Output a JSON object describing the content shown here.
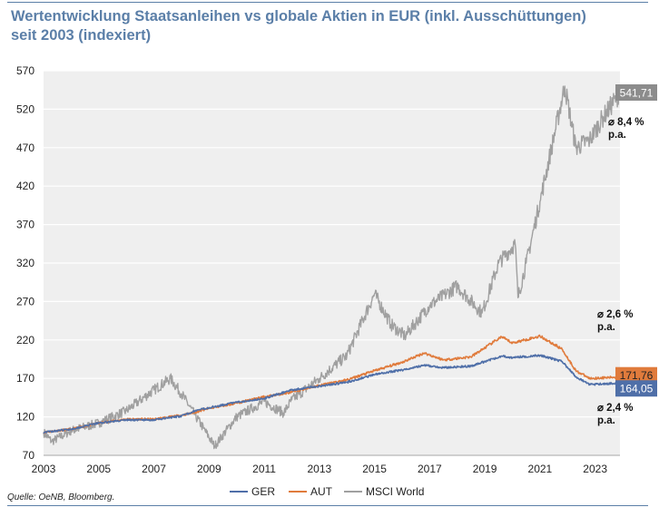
{
  "title_line1": "Wertentwicklung Staatsanleihen vs globale Aktien in EUR (inkl. Ausschüttungen)",
  "title_line2": "seit 2003 (indexiert)",
  "source": "Quelle: OeNB, Bloomberg.",
  "colors": {
    "GER": "#4f6fa8",
    "AUT": "#e07b3c",
    "MSCI World": "#a0a0a0",
    "plot_bg": "#efefef",
    "title": "#5b7fa8"
  },
  "chart_data": {
    "type": "line",
    "title": "Wertentwicklung Staatsanleihen vs globale Aktien in EUR (inkl. Ausschüttungen) seit 2003 (indexiert)",
    "xlabel": "",
    "ylabel": "",
    "xlim": [
      2003,
      2023.9
    ],
    "ylim": [
      70,
      570
    ],
    "yticks": [
      70,
      120,
      170,
      220,
      270,
      320,
      370,
      420,
      470,
      520,
      570
    ],
    "xticks": [
      2003,
      2005,
      2007,
      2009,
      2011,
      2013,
      2015,
      2017,
      2019,
      2021,
      2023
    ],
    "grid": "horizontal",
    "legend_position": "bottom",
    "series": [
      {
        "name": "GER",
        "points": [
          [
            2003,
            100
          ],
          [
            2004,
            104
          ],
          [
            2005,
            112
          ],
          [
            2006,
            116
          ],
          [
            2007,
            116
          ],
          [
            2008,
            121
          ],
          [
            2008.5,
            128
          ],
          [
            2009,
            132
          ],
          [
            2010,
            139
          ],
          [
            2011,
            144
          ],
          [
            2012,
            155
          ],
          [
            2013,
            160
          ],
          [
            2014,
            165
          ],
          [
            2015,
            175
          ],
          [
            2016,
            181
          ],
          [
            2016.8,
            187
          ],
          [
            2017.5,
            184
          ],
          [
            2018.5,
            186
          ],
          [
            2019.6,
            199
          ],
          [
            2020,
            197
          ],
          [
            2021,
            200
          ],
          [
            2021.8,
            192
          ],
          [
            2022.3,
            172
          ],
          [
            2022.8,
            162
          ],
          [
            2023.9,
            164.05
          ]
        ]
      },
      {
        "name": "AUT",
        "points": [
          [
            2003,
            100
          ],
          [
            2004,
            104
          ],
          [
            2005,
            112
          ],
          [
            2006,
            117
          ],
          [
            2007,
            117
          ],
          [
            2008,
            122
          ],
          [
            2008.5,
            126
          ],
          [
            2009,
            131
          ],
          [
            2010,
            138
          ],
          [
            2011,
            146
          ],
          [
            2012,
            152
          ],
          [
            2013,
            161
          ],
          [
            2014,
            168
          ],
          [
            2015,
            180
          ],
          [
            2016,
            191
          ],
          [
            2016.8,
            203
          ],
          [
            2017.5,
            194
          ],
          [
            2018.5,
            198
          ],
          [
            2019.6,
            224
          ],
          [
            2020,
            216
          ],
          [
            2021,
            225
          ],
          [
            2021.8,
            208
          ],
          [
            2022.3,
            180
          ],
          [
            2022.8,
            170
          ],
          [
            2023.9,
            171.76
          ]
        ]
      },
      {
        "name": "MSCI World",
        "points": [
          [
            2003,
            100
          ],
          [
            2003.3,
            88
          ],
          [
            2004,
            102
          ],
          [
            2005,
            112
          ],
          [
            2006,
            128
          ],
          [
            2007,
            155
          ],
          [
            2007.6,
            170
          ],
          [
            2008,
            150
          ],
          [
            2008.8,
            105
          ],
          [
            2009.2,
            82
          ],
          [
            2010,
            120
          ],
          [
            2011,
            140
          ],
          [
            2011.7,
            125
          ],
          [
            2012,
            142
          ],
          [
            2013,
            170
          ],
          [
            2014,
            200
          ],
          [
            2015,
            280
          ],
          [
            2015.6,
            240
          ],
          [
            2016.1,
            225
          ],
          [
            2017,
            265
          ],
          [
            2018,
            290
          ],
          [
            2018.9,
            255
          ],
          [
            2019.5,
            320
          ],
          [
            2020.1,
            345
          ],
          [
            2020.2,
            275
          ],
          [
            2020.5,
            320
          ],
          [
            2021,
            400
          ],
          [
            2021.9,
            550
          ],
          [
            2022.3,
            470
          ],
          [
            2022.8,
            480
          ],
          [
            2023.3,
            510
          ],
          [
            2023.9,
            541.71
          ]
        ]
      }
    ],
    "end_labels": [
      {
        "series": "MSCI World",
        "text": "541,71"
      },
      {
        "series": "AUT",
        "text": "171,76"
      },
      {
        "series": "GER",
        "text": "164,05"
      }
    ],
    "annotations": [
      {
        "text": "⌀ 8,4 %",
        "line2": "p.a."
      },
      {
        "text": "⌀ 2,6 %",
        "line2": "p.a."
      },
      {
        "text": "⌀ 2,4 %",
        "line2": "p.a."
      }
    ]
  }
}
